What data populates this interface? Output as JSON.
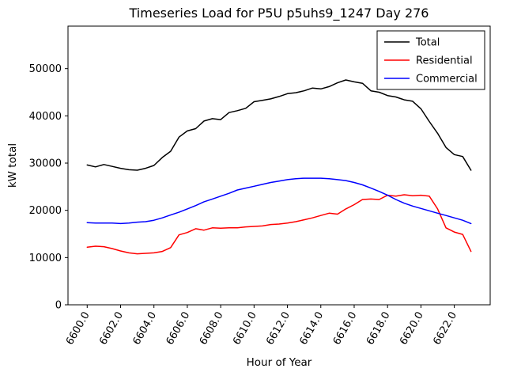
{
  "chart_data": {
    "type": "line",
    "title": "Timeseries Load for P5U p5uhs9_1247  Day 276",
    "xlabel": "Hour of Year",
    "ylabel": "kW total",
    "grid": false,
    "legend_position": "upper right",
    "xlim": [
      6598.85,
      6624.15
    ],
    "ylim": [
      0,
      59000
    ],
    "x_tick_rotation": 60,
    "x_ticks": [
      {
        "value": 6600,
        "label": "6600.0"
      },
      {
        "value": 6602,
        "label": "6602.0"
      },
      {
        "value": 6604,
        "label": "6604.0"
      },
      {
        "value": 6606,
        "label": "6606.0"
      },
      {
        "value": 6608,
        "label": "6608.0"
      },
      {
        "value": 6610,
        "label": "6610.0"
      },
      {
        "value": 6612,
        "label": "6612.0"
      },
      {
        "value": 6614,
        "label": "6614.0"
      },
      {
        "value": 6616,
        "label": "6616.0"
      },
      {
        "value": 6618,
        "label": "6618.0"
      },
      {
        "value": 6620,
        "label": "6620.0"
      },
      {
        "value": 6622,
        "label": "6622.0"
      }
    ],
    "y_ticks": [
      {
        "value": 0,
        "label": "0"
      },
      {
        "value": 10000,
        "label": "10000"
      },
      {
        "value": 20000,
        "label": "20000"
      },
      {
        "value": 30000,
        "label": "30000"
      },
      {
        "value": 40000,
        "label": "40000"
      },
      {
        "value": 50000,
        "label": "50000"
      }
    ],
    "x": [
      6600.0,
      6600.5,
      6601.0,
      6601.5,
      6602.0,
      6602.5,
      6603.0,
      6603.5,
      6604.0,
      6604.5,
      6605.0,
      6605.5,
      6606.0,
      6606.5,
      6607.0,
      6607.5,
      6608.0,
      6608.5,
      6609.0,
      6609.5,
      6610.0,
      6610.5,
      6611.0,
      6611.5,
      6612.0,
      6612.5,
      6613.0,
      6613.5,
      6614.0,
      6614.5,
      6615.0,
      6615.5,
      6616.0,
      6616.5,
      6617.0,
      6617.5,
      6618.0,
      6618.5,
      6619.0,
      6619.5,
      6620.0,
      6620.5,
      6621.0,
      6621.5,
      6622.0,
      6622.5,
      6623.0
    ],
    "series": [
      {
        "name": "Total",
        "color": "#000000",
        "values": [
          29600,
          29200,
          29700,
          29300,
          28900,
          28600,
          28500,
          28900,
          29500,
          31200,
          32500,
          35500,
          36800,
          37300,
          38900,
          39400,
          39200,
          40700,
          41100,
          41600,
          43000,
          43300,
          43600,
          44100,
          44700,
          44900,
          45300,
          45900,
          45700,
          46200,
          47000,
          47600,
          47200,
          46900,
          45300,
          45000,
          44300,
          44000,
          43400,
          43100,
          41500,
          38800,
          36300,
          33300,
          31800,
          31400,
          28500
        ]
      },
      {
        "name": "Residential",
        "color": "#ff0000",
        "values": [
          12200,
          12400,
          12300,
          11900,
          11400,
          11000,
          10800,
          10900,
          11000,
          11300,
          12100,
          14800,
          15300,
          16100,
          15800,
          16300,
          16200,
          16300,
          16300,
          16500,
          16600,
          16700,
          17000,
          17100,
          17300,
          17600,
          18000,
          18400,
          18900,
          19400,
          19200,
          20300,
          21200,
          22300,
          22400,
          22300,
          23200,
          23000,
          23300,
          23100,
          23200,
          23000,
          20300,
          16300,
          15400,
          14900,
          11300
        ]
      },
      {
        "name": "Commercial",
        "color": "#0000ff",
        "values": [
          17400,
          17300,
          17300,
          17300,
          17200,
          17300,
          17500,
          17600,
          17900,
          18400,
          19000,
          19600,
          20300,
          21000,
          21800,
          22400,
          23000,
          23600,
          24300,
          24700,
          25100,
          25500,
          25900,
          26200,
          26500,
          26700,
          26800,
          26800,
          26800,
          26700,
          26500,
          26300,
          25900,
          25400,
          24700,
          24000,
          23200,
          22300,
          21500,
          20900,
          20400,
          19900,
          19400,
          18900,
          18400,
          17900,
          17200
        ]
      }
    ]
  }
}
